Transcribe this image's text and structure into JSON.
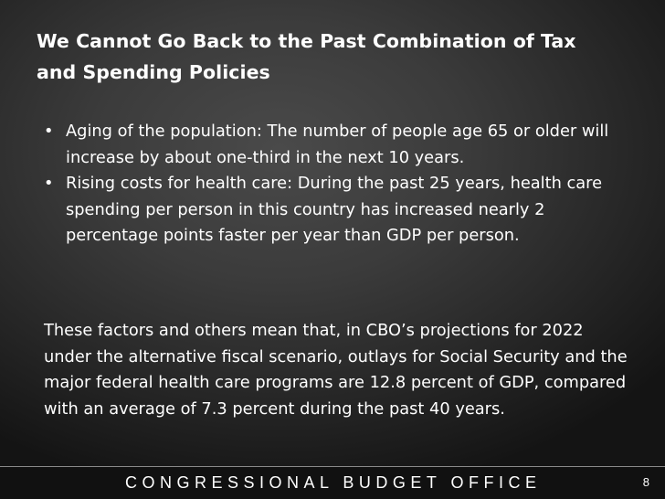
{
  "slide": {
    "title": "We Cannot Go Back to the Past Combination of Tax and Spending Policies",
    "bullet_symbol": "•",
    "bullets": [
      "Aging of the population: The number of people age 65 or older will increase by about one-third in the next 10 years.",
      "Rising costs for health care: During the past 25 years, health care spending per person in this country has increased nearly 2 percentage points faster per year than GDP per person."
    ],
    "summary": "These factors and others mean that, in CBO’s projections for 2022 under the alternative fiscal scenario, outlays for Social Security and the major federal health care programs are 12.8 percent of GDP, compared with an average of 7.3 percent during the past 40 years."
  },
  "footer": {
    "organization": "CONGRESSIONAL BUDGET OFFICE",
    "page_number": "8"
  },
  "colors": {
    "text": "#ffffff",
    "background_center": "#4a4a4a",
    "background_edge": "#141414",
    "footer_band": "#111111",
    "footer_rule": "#8a8a8a"
  }
}
